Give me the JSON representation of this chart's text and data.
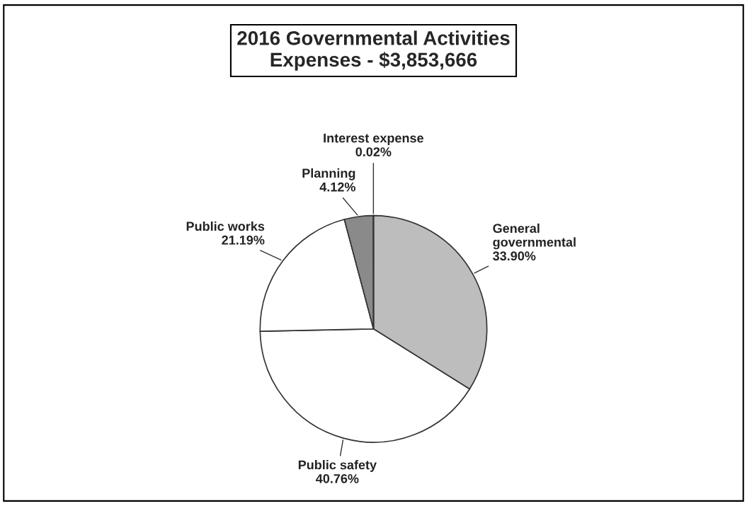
{
  "chart_data": {
    "type": "pie",
    "title": "2016 Governmental Activities\nExpenses - $3,853,666",
    "categories": [
      "General\ngovernmental",
      "Public safety",
      "Public works",
      "Planning",
      "Interest expense"
    ],
    "values": [
      33.9,
      40.76,
      21.19,
      4.12,
      0.02
    ],
    "value_labels": [
      "33.90%",
      "40.76%",
      "21.19%",
      "4.12%",
      "0.02%"
    ],
    "colors": [
      "#bdbdbd",
      "#ffffff",
      "#ffffff",
      "#8a8a8a",
      "#333333"
    ],
    "legend": false
  }
}
